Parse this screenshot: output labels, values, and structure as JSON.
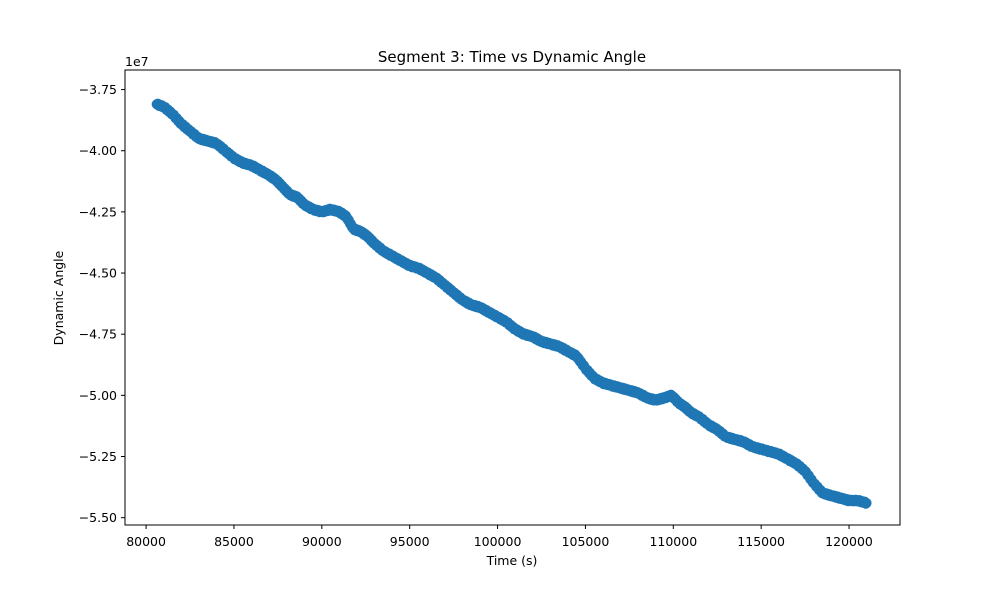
{
  "chart_data": {
    "type": "scatter",
    "title": "Segment 3: Time vs Dynamic Angle",
    "xlabel": "Time (s)",
    "ylabel": "Dynamic Angle",
    "y_offset_label": "1e7",
    "xlim": [
      78800,
      122900
    ],
    "ylim": [
      -5.53,
      -3.67
    ],
    "y_scale_factor": 10000000,
    "x_ticks": [
      80000,
      85000,
      90000,
      95000,
      100000,
      105000,
      110000,
      115000,
      120000
    ],
    "x_tick_labels": [
      "80000",
      "85000",
      "90000",
      "95000",
      "100000",
      "105000",
      "110000",
      "115000",
      "120000"
    ],
    "y_ticks": [
      -3.75,
      -4.0,
      -4.25,
      -4.5,
      -4.75,
      -5.0,
      -5.25,
      -5.5
    ],
    "y_tick_labels": [
      "−3.75",
      "−4.00",
      "−4.25",
      "−4.50",
      "−4.75",
      "−5.00",
      "−5.25",
      "−5.50"
    ],
    "grid": false,
    "marker_color": "#1f77b4",
    "series": [
      {
        "x": [
          80600,
          81000,
          81500,
          82000,
          82500,
          83000,
          83500,
          84000,
          84500,
          85000,
          85500,
          86000,
          86500,
          87000,
          87400,
          87800,
          88200,
          88600,
          89000,
          89500,
          90000,
          90500,
          91000,
          91400,
          91800,
          92200,
          92600,
          93000,
          93500,
          94000,
          94500,
          95000,
          95500,
          96000,
          96500,
          97000,
          97500,
          98000,
          98500,
          99000,
          99500,
          100000,
          100500,
          101000,
          101500,
          102000,
          102500,
          103000,
          103500,
          104000,
          104500,
          105000,
          105500,
          106000,
          106500,
          107000,
          107500,
          108000,
          108500,
          109000,
          109500,
          109900,
          110300,
          110700,
          111000,
          111500,
          112000,
          112500,
          113000,
          113500,
          114000,
          114500,
          115000,
          115500,
          116000,
          116500,
          117000,
          117500,
          118000,
          118500,
          119000,
          119500,
          120000,
          120500,
          121000
        ],
        "y": [
          -3.81,
          -3.82,
          -3.85,
          -3.89,
          -3.92,
          -3.95,
          -3.96,
          -3.97,
          -4.0,
          -4.03,
          -4.05,
          -4.06,
          -4.08,
          -4.1,
          -4.12,
          -4.15,
          -4.18,
          -4.19,
          -4.22,
          -4.24,
          -4.25,
          -4.24,
          -4.25,
          -4.27,
          -4.32,
          -4.33,
          -4.35,
          -4.38,
          -4.41,
          -4.43,
          -4.45,
          -4.47,
          -4.48,
          -4.5,
          -4.52,
          -4.55,
          -4.58,
          -4.61,
          -4.63,
          -4.64,
          -4.66,
          -4.68,
          -4.7,
          -4.73,
          -4.75,
          -4.76,
          -4.78,
          -4.79,
          -4.8,
          -4.82,
          -4.84,
          -4.89,
          -4.93,
          -4.95,
          -4.96,
          -4.97,
          -4.98,
          -4.99,
          -5.01,
          -5.02,
          -5.01,
          -5.0,
          -5.03,
          -5.05,
          -5.07,
          -5.09,
          -5.12,
          -5.14,
          -5.17,
          -5.18,
          -5.19,
          -5.21,
          -5.22,
          -5.23,
          -5.24,
          -5.26,
          -5.28,
          -5.31,
          -5.36,
          -5.4,
          -5.41,
          -5.42,
          -5.43,
          -5.43,
          -5.44
        ]
      }
    ]
  }
}
